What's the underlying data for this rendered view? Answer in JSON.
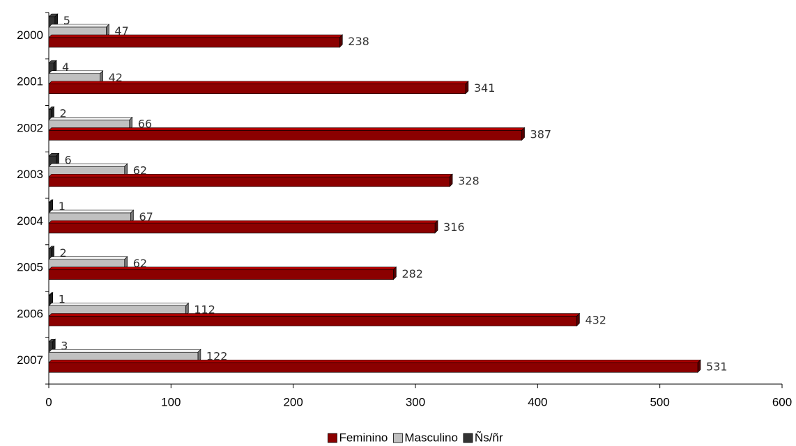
{
  "chart_data": {
    "type": "bar",
    "orientation": "horizontal",
    "categories": [
      "2000",
      "2001",
      "2002",
      "2003",
      "2004",
      "2005",
      "2006",
      "2007"
    ],
    "series": [
      {
        "name": "Feminino",
        "color": "#8b0000",
        "values": [
          238,
          341,
          387,
          328,
          316,
          282,
          432,
          531
        ]
      },
      {
        "name": "Masculino",
        "color": "#c0c0c0",
        "values": [
          47,
          42,
          66,
          62,
          67,
          62,
          112,
          122
        ]
      },
      {
        "name": "Ñs/ñr",
        "color": "#333333",
        "values": [
          5,
          4,
          2,
          6,
          1,
          2,
          1,
          3
        ]
      }
    ],
    "xlim": [
      0,
      600
    ],
    "xticks": [
      0,
      100,
      200,
      300,
      400,
      500,
      600
    ],
    "legend": "bottom"
  }
}
